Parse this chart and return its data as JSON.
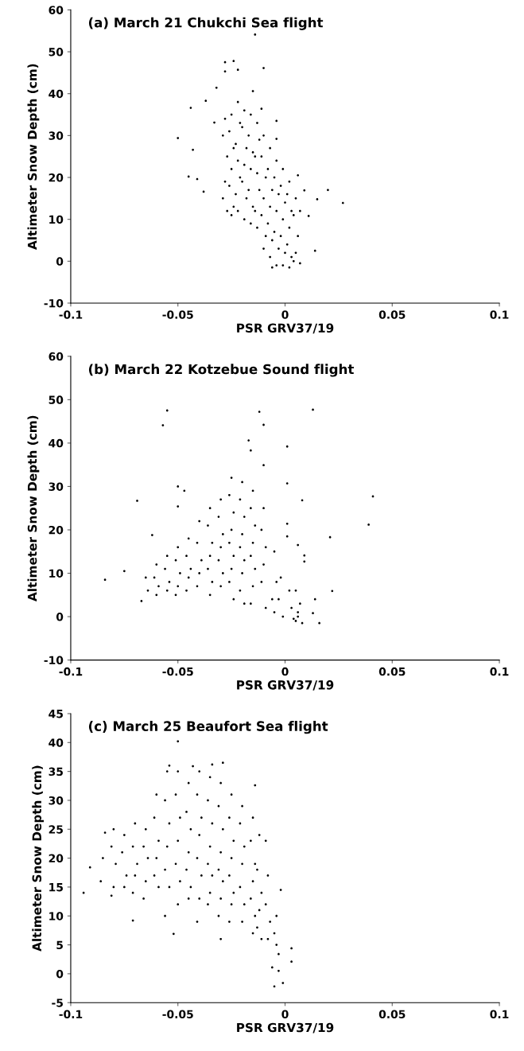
{
  "chart_data": [
    {
      "type": "scatter",
      "title": "(a) March 21 Chukchi Sea flight",
      "xlabel": "PSR GRV37/19",
      "ylabel": "Altimeter Snow Depth (cm)",
      "xlim": [
        -0.1,
        0.1
      ],
      "xticks": [
        -0.1,
        -0.05,
        0,
        0.05,
        0.1
      ],
      "ylim": [
        -10,
        60
      ],
      "yticks": [
        -10,
        0,
        10,
        20,
        30,
        40,
        50,
        60
      ],
      "grid": false,
      "marker": "circle",
      "series": [
        {
          "color": "#000000",
          "x": [
            -0.014,
            -0.05,
            -0.044,
            -0.043,
            -0.045,
            -0.041,
            -0.038,
            -0.037,
            -0.032,
            -0.033,
            -0.028,
            -0.024,
            -0.022,
            -0.01,
            -0.028,
            -0.015,
            -0.011,
            0.027,
            0.02,
            0.015,
            0.014,
            0.006,
            0.011,
            0.009,
            -0.004,
            -0.004,
            -0.028,
            -0.029,
            -0.027,
            -0.028,
            -0.029,
            -0.027,
            -0.025,
            -0.026,
            -0.024,
            -0.025,
            -0.026,
            -0.024,
            -0.025,
            -0.022,
            -0.021,
            -0.023,
            -0.022,
            -0.021,
            -0.023,
            -0.022,
            -0.019,
            -0.02,
            -0.018,
            -0.019,
            -0.02,
            -0.018,
            -0.019,
            -0.016,
            -0.017,
            -0.015,
            -0.016,
            -0.017,
            -0.015,
            -0.016,
            -0.013,
            -0.012,
            -0.014,
            -0.013,
            -0.012,
            -0.014,
            -0.013,
            -0.01,
            -0.011,
            -0.009,
            -0.01,
            -0.011,
            -0.009,
            -0.01,
            -0.007,
            -0.008,
            -0.006,
            -0.007,
            -0.008,
            -0.006,
            -0.007,
            -0.006,
            -0.004,
            -0.005,
            -0.003,
            -0.004,
            -0.005,
            -0.003,
            -0.004,
            -0.001,
            -0.002,
            0.0,
            -0.001,
            -0.002,
            0.0,
            -0.001,
            0.002,
            0.001,
            0.003,
            0.002,
            0.001,
            0.003,
            0.002,
            0.005,
            0.004,
            0.006,
            0.005,
            0.004,
            0.007,
            0.007
          ],
          "values": [
            54.1,
            29.4,
            36.6,
            26.6,
            20.2,
            19.6,
            16.6,
            38.3,
            41.4,
            33.1,
            47.5,
            47.8,
            45.7,
            46.1,
            45.3,
            40.6,
            36.4,
            13.9,
            17.0,
            14.8,
            2.5,
            20.5,
            10.8,
            16.9,
            33.5,
            29.2,
            34,
            30,
            25,
            19,
            15,
            12,
            35,
            31,
            27,
            22,
            18,
            13,
            11,
            38,
            33,
            28,
            24,
            20,
            16,
            12,
            36,
            32,
            27,
            23,
            19,
            15,
            10,
            35,
            30,
            26,
            22,
            17,
            13,
            9,
            33,
            29,
            25,
            21,
            17,
            12,
            8,
            30,
            25,
            20,
            15,
            11,
            6,
            3,
            27,
            22,
            17,
            13,
            9,
            5,
            1,
            -1.5,
            24,
            20,
            16,
            12,
            7,
            3,
            -1,
            22,
            18,
            14,
            10,
            6,
            2,
            -1,
            19,
            16,
            12,
            8,
            4,
            1,
            -1.5,
            15,
            11,
            6,
            2,
            0,
            12,
            -0.5
          ]
        }
      ]
    },
    {
      "type": "scatter",
      "title": "(b) March 22 Kotzebue Sound flight",
      "xlabel": "PSR GRV37/19",
      "ylabel": "Altimeter Snow Depth (cm)",
      "xlim": [
        -0.1,
        0.1
      ],
      "xticks": [
        -0.1,
        -0.05,
        0,
        0.05,
        0.1
      ],
      "ylim": [
        -10,
        60
      ],
      "yticks": [
        -10,
        0,
        10,
        20,
        30,
        40,
        50,
        60
      ],
      "grid": false,
      "marker": "circle",
      "series": [
        {
          "color": "#000000",
          "x": [
            -0.084,
            -0.075,
            -0.069,
            -0.055,
            -0.057,
            -0.05,
            -0.047,
            -0.05,
            -0.012,
            -0.01,
            -0.017,
            -0.016,
            -0.01,
            0.001,
            0.001,
            0.013,
            0.008,
            0.041,
            0.039,
            0.021,
            0.022,
            0.016,
            0.014,
            0.013,
            0.001,
            0.001,
            0.006,
            0.009,
            0.009,
            -0.062,
            -0.067,
            -0.065,
            -0.064,
            -0.06,
            -0.061,
            -0.059,
            -0.06,
            -0.055,
            -0.056,
            -0.054,
            -0.055,
            -0.05,
            -0.051,
            -0.049,
            -0.05,
            -0.051,
            -0.045,
            -0.046,
            -0.044,
            -0.045,
            -0.046,
            -0.04,
            -0.041,
            -0.039,
            -0.04,
            -0.041,
            -0.035,
            -0.036,
            -0.034,
            -0.035,
            -0.036,
            -0.034,
            -0.035,
            -0.03,
            -0.031,
            -0.029,
            -0.03,
            -0.031,
            -0.029,
            -0.03,
            -0.025,
            -0.026,
            -0.024,
            -0.025,
            -0.026,
            -0.024,
            -0.025,
            -0.026,
            -0.024,
            -0.02,
            -0.021,
            -0.019,
            -0.02,
            -0.021,
            -0.019,
            -0.02,
            -0.021,
            -0.019,
            -0.015,
            -0.016,
            -0.014,
            -0.015,
            -0.016,
            -0.014,
            -0.015,
            -0.016,
            -0.01,
            -0.011,
            -0.009,
            -0.01,
            -0.011,
            -0.009,
            -0.005,
            -0.004,
            -0.006,
            -0.005,
            -0.002,
            -0.003,
            -0.001,
            0.002,
            0.003,
            0.004,
            0.005,
            0.006,
            0.005,
            0.007,
            0.006,
            0.008
          ],
          "values": [
            8.5,
            10.5,
            26.7,
            47.5,
            44.1,
            30.0,
            29.0,
            25.4,
            47.2,
            44.2,
            40.6,
            38.3,
            34.9,
            39.2,
            30.7,
            47.7,
            26.8,
            27.7,
            21.2,
            18.3,
            5.9,
            -1.5,
            4.0,
            0.8,
            21.4,
            18.5,
            16.5,
            14.1,
            12.7,
            18.8,
            3.6,
            9,
            6,
            12,
            9,
            7,
            5,
            14,
            11,
            8,
            6,
            16,
            13,
            10,
            7,
            5,
            18,
            14,
            11,
            9,
            6,
            22,
            17,
            13,
            10,
            7,
            25,
            21,
            17,
            14,
            11,
            8,
            5,
            27,
            23,
            19,
            16,
            13,
            10,
            7,
            32,
            28,
            24,
            20,
            17,
            14,
            11,
            8,
            4,
            31,
            27,
            23,
            19,
            16,
            13,
            10,
            6,
            3,
            29,
            25,
            21,
            17,
            14,
            11,
            7,
            3,
            25,
            20,
            16,
            12,
            8,
            2,
            15,
            8,
            4,
            1,
            9,
            4,
            0,
            6,
            2,
            -0.5,
            6,
            1,
            -1,
            3,
            0,
            -1.5
          ]
        }
      ]
    },
    {
      "type": "scatter",
      "title": "(c) March 25 Beaufort Sea flight",
      "xlabel": "PSR GRV37/19",
      "ylabel": "Altimeter Snow Depth (cm)",
      "xlim": [
        -0.1,
        0.1
      ],
      "xticks": [
        -0.1,
        -0.05,
        0,
        0.05,
        0.1
      ],
      "ylim": [
        -5,
        45
      ],
      "yticks": [
        -5,
        0,
        5,
        10,
        15,
        20,
        25,
        30,
        35,
        40,
        45
      ],
      "grid": false,
      "marker": "circle",
      "series": [
        {
          "color": "#000000",
          "x": [
            -0.094,
            -0.091,
            -0.05,
            -0.052,
            -0.03,
            -0.071,
            -0.005,
            -0.001,
            0.003,
            0.003,
            -0.003,
            -0.003,
            -0.002,
            -0.006,
            -0.029,
            -0.034,
            -0.043,
            -0.054,
            -0.014,
            -0.009,
            -0.084,
            -0.085,
            -0.086,
            -0.08,
            -0.081,
            -0.079,
            -0.08,
            -0.081,
            -0.075,
            -0.076,
            -0.074,
            -0.075,
            -0.07,
            -0.071,
            -0.069,
            -0.07,
            -0.071,
            -0.065,
            -0.066,
            -0.064,
            -0.065,
            -0.066,
            -0.06,
            -0.061,
            -0.059,
            -0.06,
            -0.061,
            -0.059,
            -0.055,
            -0.056,
            -0.054,
            -0.055,
            -0.056,
            -0.054,
            -0.056,
            -0.05,
            -0.051,
            -0.049,
            -0.05,
            -0.051,
            -0.049,
            -0.05,
            -0.045,
            -0.046,
            -0.044,
            -0.045,
            -0.046,
            -0.044,
            -0.045,
            -0.04,
            -0.041,
            -0.039,
            -0.04,
            -0.041,
            -0.039,
            -0.04,
            -0.041,
            -0.035,
            -0.036,
            -0.034,
            -0.035,
            -0.036,
            -0.034,
            -0.035,
            -0.036,
            -0.03,
            -0.031,
            -0.029,
            -0.03,
            -0.031,
            -0.029,
            -0.03,
            -0.031,
            -0.025,
            -0.026,
            -0.024,
            -0.025,
            -0.026,
            -0.024,
            -0.025,
            -0.026,
            -0.02,
            -0.021,
            -0.019,
            -0.02,
            -0.021,
            -0.019,
            -0.02,
            -0.015,
            -0.016,
            -0.014,
            -0.015,
            -0.016,
            -0.014,
            -0.015,
            -0.012,
            -0.013,
            -0.011,
            -0.012,
            -0.013,
            -0.011,
            -0.008,
            -0.009,
            -0.007,
            -0.008,
            -0.004,
            -0.005,
            -0.004
          ],
          "values": [
            14.0,
            18.4,
            40.2,
            6.9,
            6.0,
            9.2,
            -2.2,
            -1.6,
            2.1,
            4.4,
            0.5,
            3.4,
            14.5,
            1.1,
            36.5,
            36.2,
            35.9,
            36.0,
            32.6,
            23.0,
            24.4,
            20,
            16,
            25,
            22,
            19,
            15,
            13.5,
            24,
            21,
            17,
            15,
            26,
            22,
            19,
            17,
            14,
            25,
            22,
            20,
            16,
            13,
            31,
            27,
            23,
            20,
            17,
            15,
            35,
            30,
            26,
            22,
            18,
            15,
            10,
            35,
            31,
            27,
            23,
            19,
            16,
            12,
            33,
            28,
            25,
            21,
            18,
            15,
            13,
            35,
            31,
            27,
            24,
            20,
            17,
            13,
            9,
            34,
            30,
            26,
            22,
            19,
            17,
            14,
            12,
            33,
            29,
            25,
            21,
            18,
            16,
            13,
            10,
            31,
            27,
            23,
            20,
            17,
            14,
            12,
            9,
            29,
            26,
            22,
            19,
            15,
            12,
            9,
            27,
            23,
            19,
            16,
            13,
            10,
            7,
            24,
            18,
            14,
            11,
            8,
            6,
            17,
            12,
            9,
            6,
            10,
            7,
            5
          ]
        }
      ]
    }
  ]
}
